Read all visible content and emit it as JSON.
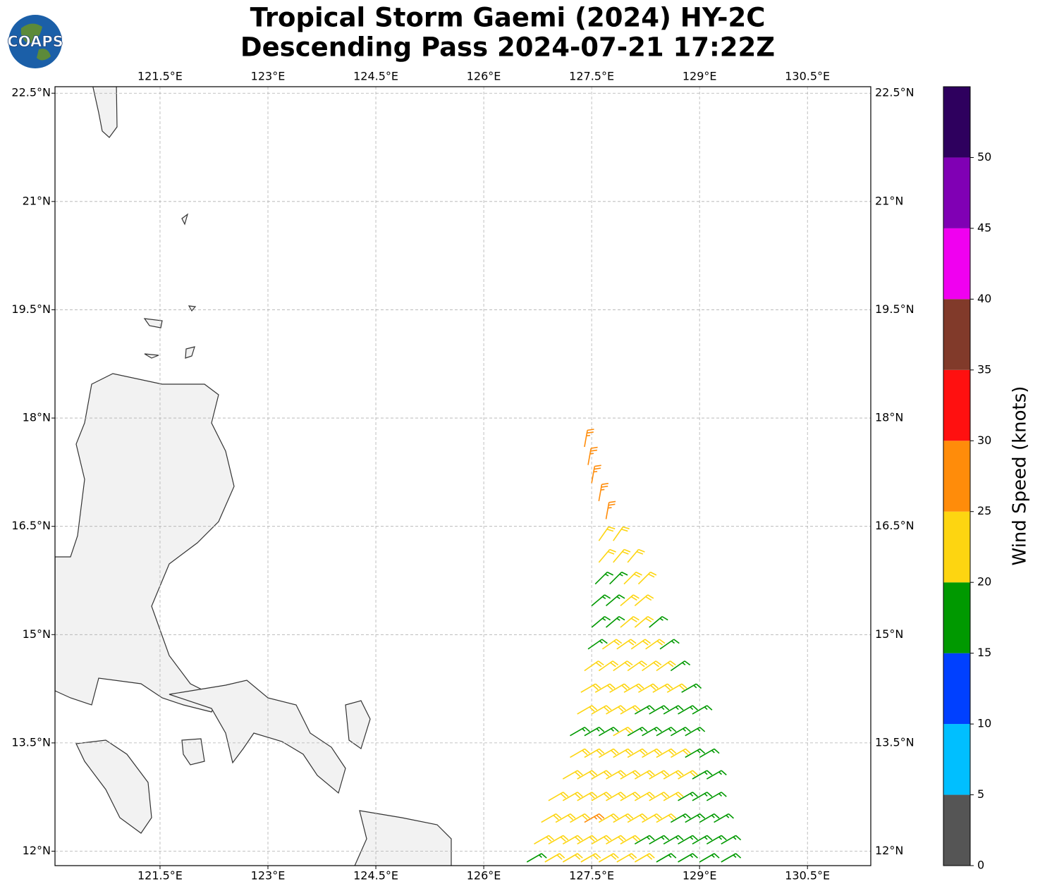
{
  "chart_data": {
    "type": "barbs",
    "title": [
      "Tropical Storm Gaemi (2024) HY-2C",
      "Descending Pass 2024-07-21 17:22Z"
    ],
    "logo": "COAPS",
    "xlim": [
      120.04,
      131.38
    ],
    "ylim": [
      11.8,
      22.59
    ],
    "xticks": [
      {
        "value": 121.5,
        "label": "121.5°E"
      },
      {
        "value": 123,
        "label": "123°E"
      },
      {
        "value": 124.5,
        "label": "124.5°E"
      },
      {
        "value": 126,
        "label": "126°E"
      },
      {
        "value": 127.5,
        "label": "127.5°E"
      },
      {
        "value": 129,
        "label": "129°E"
      },
      {
        "value": 130.5,
        "label": "130.5°E"
      }
    ],
    "yticks": [
      {
        "value": 12,
        "label": "12°N"
      },
      {
        "value": 13.5,
        "label": "13.5°N"
      },
      {
        "value": 15,
        "label": "15°N"
      },
      {
        "value": 16.5,
        "label": "16.5°N"
      },
      {
        "value": 18,
        "label": "18°N"
      },
      {
        "value": 19.5,
        "label": "19.5°N"
      },
      {
        "value": 21,
        "label": "21°N"
      },
      {
        "value": 22.5,
        "label": "22.5°N"
      }
    ],
    "grid": true,
    "colorbar": {
      "label": "Wind Speed (knots)",
      "clim": [
        0,
        55
      ],
      "ticks": [
        0,
        5,
        10,
        15,
        20,
        25,
        30,
        35,
        40,
        45,
        50
      ],
      "colors": [
        "#555555",
        "#00bfff",
        "#0040ff",
        "#009900",
        "#fdd511",
        "#ff8c0a",
        "#ff1010",
        "#813a2a",
        "#f000f0",
        "#8000b4",
        "#2e005e"
      ]
    },
    "barbs": [
      [
        127.4,
        17.6,
        27,
        10
      ],
      [
        127.45,
        17.35,
        27,
        10
      ],
      [
        127.5,
        17.1,
        27,
        10
      ],
      [
        127.6,
        16.85,
        27,
        10
      ],
      [
        127.7,
        16.6,
        27,
        10
      ],
      [
        127.6,
        16.3,
        22,
        35
      ],
      [
        127.8,
        16.3,
        22,
        35
      ],
      [
        127.6,
        16.0,
        22,
        40
      ],
      [
        127.8,
        16.0,
        22,
        40
      ],
      [
        128.0,
        16.0,
        22,
        40
      ],
      [
        127.55,
        15.7,
        17,
        45
      ],
      [
        127.75,
        15.7,
        17,
        45
      ],
      [
        127.95,
        15.7,
        22,
        45
      ],
      [
        128.15,
        15.7,
        22,
        45
      ],
      [
        127.5,
        15.4,
        17,
        50
      ],
      [
        127.7,
        15.4,
        17,
        50
      ],
      [
        127.9,
        15.4,
        22,
        50
      ],
      [
        128.1,
        15.4,
        22,
        50
      ],
      [
        127.5,
        15.1,
        17,
        50
      ],
      [
        127.7,
        15.1,
        17,
        50
      ],
      [
        127.9,
        15.1,
        22,
        50
      ],
      [
        128.1,
        15.1,
        22,
        50
      ],
      [
        128.3,
        15.1,
        17,
        50
      ],
      [
        127.45,
        14.8,
        17,
        55
      ],
      [
        127.65,
        14.8,
        22,
        55
      ],
      [
        127.85,
        14.8,
        22,
        55
      ],
      [
        128.05,
        14.8,
        22,
        55
      ],
      [
        128.25,
        14.8,
        22,
        55
      ],
      [
        128.45,
        14.8,
        17,
        55
      ],
      [
        127.4,
        14.5,
        22,
        55
      ],
      [
        127.6,
        14.5,
        22,
        55
      ],
      [
        127.8,
        14.5,
        22,
        55
      ],
      [
        128.0,
        14.5,
        22,
        55
      ],
      [
        128.2,
        14.5,
        22,
        55
      ],
      [
        128.4,
        14.5,
        22,
        55
      ],
      [
        128.6,
        14.5,
        17,
        55
      ],
      [
        127.35,
        14.2,
        22,
        60
      ],
      [
        127.55,
        14.2,
        22,
        60
      ],
      [
        127.75,
        14.2,
        22,
        60
      ],
      [
        127.95,
        14.2,
        22,
        60
      ],
      [
        128.15,
        14.2,
        22,
        60
      ],
      [
        128.35,
        14.2,
        22,
        60
      ],
      [
        128.55,
        14.2,
        22,
        60
      ],
      [
        128.75,
        14.2,
        17,
        60
      ],
      [
        127.3,
        13.9,
        22,
        60
      ],
      [
        127.5,
        13.9,
        22,
        60
      ],
      [
        127.7,
        13.9,
        22,
        60
      ],
      [
        127.9,
        13.9,
        22,
        60
      ],
      [
        128.1,
        13.9,
        17,
        60
      ],
      [
        128.3,
        13.9,
        17,
        60
      ],
      [
        128.5,
        13.9,
        17,
        60
      ],
      [
        128.7,
        13.9,
        17,
        60
      ],
      [
        128.9,
        13.9,
        17,
        60
      ],
      [
        127.2,
        13.6,
        17,
        60
      ],
      [
        127.4,
        13.6,
        17,
        60
      ],
      [
        127.6,
        13.6,
        17,
        60
      ],
      [
        127.8,
        13.6,
        22,
        60
      ],
      [
        128.0,
        13.6,
        17,
        60
      ],
      [
        128.2,
        13.6,
        17,
        60
      ],
      [
        128.4,
        13.6,
        17,
        60
      ],
      [
        128.6,
        13.6,
        17,
        60
      ],
      [
        128.8,
        13.6,
        17,
        60
      ],
      [
        127.2,
        13.3,
        22,
        60
      ],
      [
        127.4,
        13.3,
        22,
        60
      ],
      [
        127.6,
        13.3,
        22,
        60
      ],
      [
        127.8,
        13.3,
        22,
        60
      ],
      [
        128.0,
        13.3,
        22,
        60
      ],
      [
        128.2,
        13.3,
        22,
        60
      ],
      [
        128.4,
        13.3,
        22,
        60
      ],
      [
        128.6,
        13.3,
        22,
        60
      ],
      [
        128.8,
        13.3,
        17,
        60
      ],
      [
        129.0,
        13.3,
        17,
        60
      ],
      [
        127.1,
        13.0,
        22,
        60
      ],
      [
        127.3,
        13.0,
        22,
        60
      ],
      [
        127.5,
        13.0,
        22,
        60
      ],
      [
        127.7,
        13.0,
        22,
        60
      ],
      [
        127.9,
        13.0,
        22,
        60
      ],
      [
        128.1,
        13.0,
        22,
        60
      ],
      [
        128.3,
        13.0,
        22,
        60
      ],
      [
        128.5,
        13.0,
        22,
        60
      ],
      [
        128.7,
        13.0,
        22,
        60
      ],
      [
        128.9,
        13.0,
        17,
        60
      ],
      [
        129.1,
        13.0,
        17,
        60
      ],
      [
        126.9,
        12.7,
        22,
        60
      ],
      [
        127.1,
        12.7,
        22,
        60
      ],
      [
        127.3,
        12.7,
        22,
        60
      ],
      [
        127.5,
        12.7,
        22,
        60
      ],
      [
        127.7,
        12.7,
        22,
        60
      ],
      [
        127.9,
        12.7,
        22,
        60
      ],
      [
        128.1,
        12.7,
        22,
        60
      ],
      [
        128.3,
        12.7,
        22,
        60
      ],
      [
        128.5,
        12.7,
        22,
        60
      ],
      [
        128.7,
        12.7,
        17,
        60
      ],
      [
        128.9,
        12.7,
        17,
        60
      ],
      [
        129.1,
        12.7,
        17,
        60
      ],
      [
        126.8,
        12.4,
        22,
        60
      ],
      [
        127.0,
        12.4,
        22,
        60
      ],
      [
        127.2,
        12.4,
        22,
        60
      ],
      [
        127.4,
        12.4,
        27,
        60
      ],
      [
        127.6,
        12.4,
        22,
        60
      ],
      [
        127.8,
        12.4,
        22,
        60
      ],
      [
        128.0,
        12.4,
        22,
        60
      ],
      [
        128.2,
        12.4,
        22,
        60
      ],
      [
        128.4,
        12.4,
        22,
        60
      ],
      [
        128.6,
        12.4,
        17,
        60
      ],
      [
        128.8,
        12.4,
        17,
        60
      ],
      [
        129.0,
        12.4,
        17,
        60
      ],
      [
        129.2,
        12.4,
        17,
        60
      ],
      [
        126.7,
        12.1,
        22,
        60
      ],
      [
        126.9,
        12.1,
        22,
        60
      ],
      [
        127.1,
        12.1,
        22,
        60
      ],
      [
        127.3,
        12.1,
        22,
        60
      ],
      [
        127.5,
        12.1,
        22,
        60
      ],
      [
        127.7,
        12.1,
        22,
        60
      ],
      [
        127.9,
        12.1,
        22,
        60
      ],
      [
        128.1,
        12.1,
        17,
        60
      ],
      [
        128.3,
        12.1,
        17,
        60
      ],
      [
        128.5,
        12.1,
        17,
        60
      ],
      [
        128.7,
        12.1,
        17,
        60
      ],
      [
        128.9,
        12.1,
        17,
        60
      ],
      [
        129.1,
        12.1,
        17,
        60
      ],
      [
        129.3,
        12.1,
        17,
        60
      ],
      [
        126.6,
        11.85,
        17,
        60
      ],
      [
        126.85,
        11.85,
        22,
        60
      ],
      [
        127.1,
        11.85,
        22,
        60
      ],
      [
        127.35,
        11.85,
        22,
        60
      ],
      [
        127.6,
        11.85,
        22,
        60
      ],
      [
        127.85,
        11.85,
        22,
        60
      ],
      [
        128.1,
        11.85,
        22,
        60
      ],
      [
        128.4,
        11.85,
        17,
        60
      ],
      [
        128.7,
        11.85,
        17,
        60
      ],
      [
        129.0,
        11.85,
        17,
        60
      ],
      [
        129.3,
        11.85,
        17,
        60
      ]
    ]
  }
}
